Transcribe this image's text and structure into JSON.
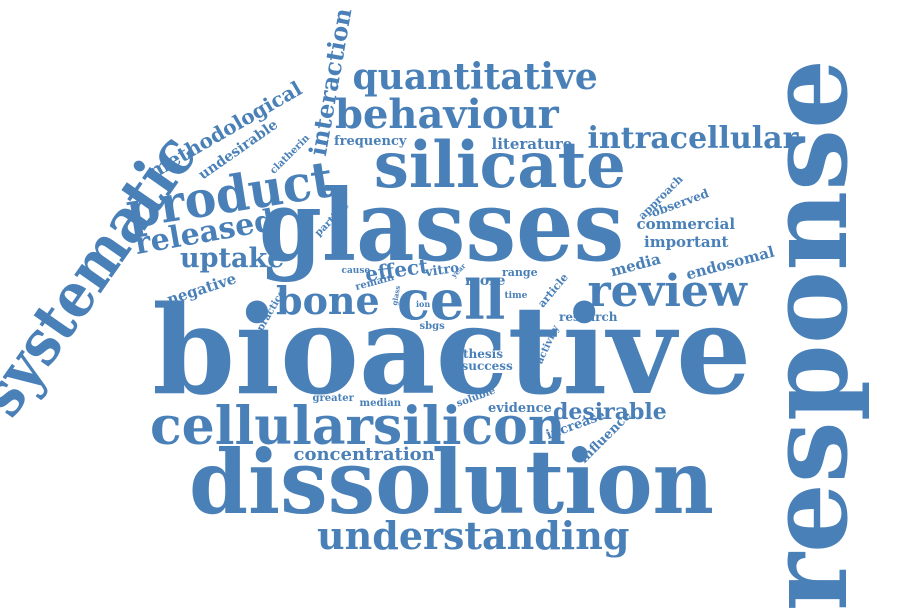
{
  "color": "#4a80b8",
  "words": {
    "bioactive": "bioactive",
    "glasses": "glasses",
    "response": "response",
    "silicate": "silicate",
    "dissolution": "dissolution",
    "cellularsilicon": "cellularsilicon",
    "systematic": "systematic",
    "product": "product",
    "cell": "cell",
    "review": "review",
    "bone": "bone",
    "quantitative": "quantitative",
    "behaviour": "behaviour",
    "understanding": "understanding",
    "intracellular": "intracellular",
    "released": "released",
    "uptake": "uptake",
    "interaction": "interaction",
    "methodological": "methodological",
    "concentration": "concentration",
    "desirable": "desirable",
    "effect": "effect",
    "negative": "negative",
    "undesirable": "undesirable",
    "literature": "literature",
    "frequency": "frequency",
    "commercial": "commercial",
    "important": "important",
    "endosomal": "endosomal",
    "media": "media",
    "more": "more",
    "vitro": "vitro",
    "evidence": "evidence",
    "increase": "increase",
    "influence": "influence",
    "approach": "approach",
    "observed": "observed",
    "clatherin": "clatherin",
    "particle": "particle",
    "range": "range",
    "article": "article",
    "research": "research",
    "thesis": "thesis",
    "success": "success",
    "activity": "activity",
    "greater": "greater",
    "median": "median",
    "soluble": "soluble",
    "practice": "practice",
    "remain": "remain",
    "cause": "cause",
    "sbgs": "sbgs",
    "ion": "ion",
    "glass": "glass",
    "year": "year",
    "time": "time"
  }
}
